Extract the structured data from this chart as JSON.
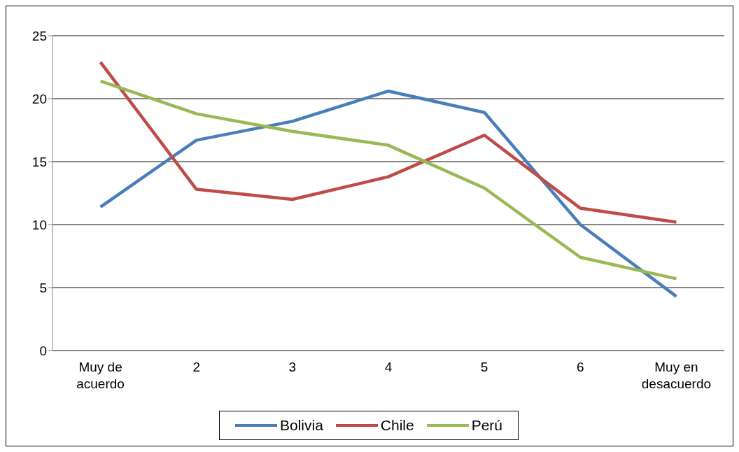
{
  "chart_data": {
    "type": "line",
    "categories": [
      "Muy de acuerdo",
      "2",
      "3",
      "4",
      "5",
      "6",
      "Muy en desacuerdo"
    ],
    "series": [
      {
        "name": "Bolivia",
        "color": "#4a7ebb",
        "values": [
          11.4,
          16.7,
          18.2,
          20.6,
          18.9,
          10.0,
          4.3
        ]
      },
      {
        "name": "Chile",
        "color": "#be4b48",
        "values": [
          22.9,
          12.8,
          12.0,
          13.8,
          17.1,
          11.3,
          10.2
        ]
      },
      {
        "name": "Perú",
        "color": "#98b954",
        "values": [
          21.4,
          18.8,
          17.4,
          16.3,
          12.9,
          7.4,
          5.7
        ]
      }
    ],
    "ylim": [
      0,
      25
    ],
    "yticks": [
      0,
      5,
      10,
      15,
      20,
      25
    ],
    "grid": "y",
    "legend": "bottom",
    "marker": "none",
    "line_style": "solid"
  }
}
